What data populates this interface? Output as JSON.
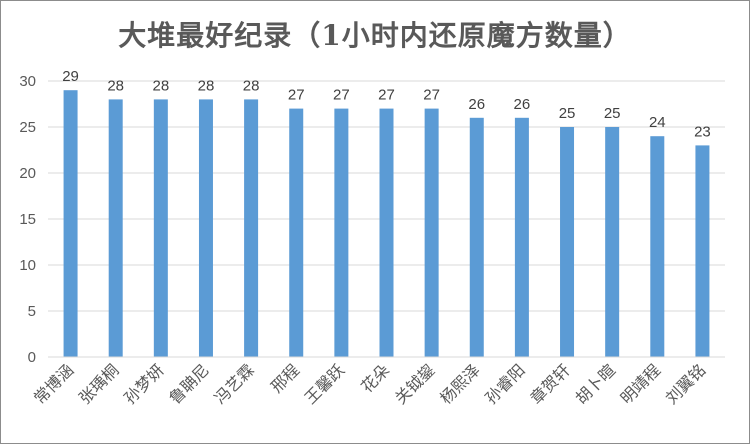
{
  "chart_data": {
    "type": "bar",
    "title": "大堆最好纪录（1小时内还原魔方数量）",
    "categories": [
      "常博涵",
      "张瑀桐",
      "孙梦妍",
      "鲁聃尼",
      "冯艺霖",
      "邢程",
      "王馨跃",
      "花朵",
      "关钺鋆",
      "杨熙泽",
      "孙睿阳",
      "章贺轩",
      "胡卜暄",
      "明靖程",
      "刘翼铭"
    ],
    "values": [
      29,
      28,
      28,
      28,
      28,
      27,
      27,
      27,
      27,
      26,
      26,
      25,
      25,
      24,
      23
    ],
    "ylim": [
      0,
      30
    ],
    "yticks": [
      0,
      5,
      10,
      15,
      20,
      25,
      30
    ],
    "grid": true,
    "legend": "none",
    "bar_color": "#5b9bd5",
    "grid_color": "#d9d9d9",
    "xlabel": "",
    "ylabel": ""
  }
}
